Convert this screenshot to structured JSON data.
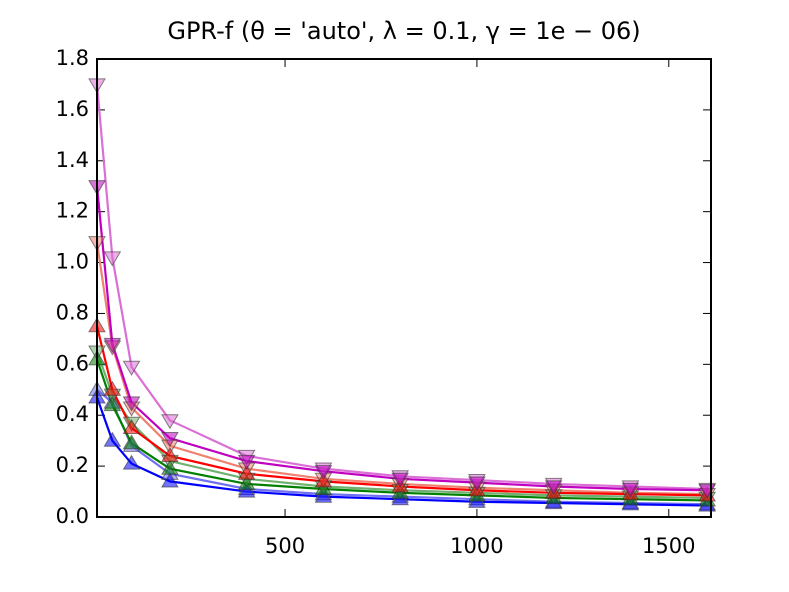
{
  "chart_data": {
    "type": "line",
    "title": "GPR-f (θ = 'auto', λ = 0.1, γ = 1e − 06)",
    "x": [
      10,
      50,
      100,
      200,
      400,
      600,
      800,
      1000,
      1200,
      1400,
      1600
    ],
    "xlim": [
      10,
      1610
    ],
    "xticks": [
      500,
      1000,
      1500
    ],
    "ylim": [
      0,
      1.8
    ],
    "yticks": [
      {
        "value": 0,
        "label": "0.0"
      },
      0.2,
      0.4,
      0.6,
      0.8,
      {
        "value": 1,
        "label": "1.0"
      },
      1.2,
      1.4,
      1.6,
      1.8
    ],
    "series": [
      {
        "color": "#7070f0",
        "marker": "^",
        "values": [
          0.5,
          0.45,
          0.28,
          0.17,
          0.11,
          0.09,
          0.08,
          0.07,
          0.06,
          0.055,
          0.05
        ]
      },
      {
        "color": "#0000ff",
        "marker": "^",
        "values": [
          0.47,
          0.3,
          0.21,
          0.14,
          0.1,
          0.08,
          0.07,
          0.06,
          0.055,
          0.05,
          0.045
        ]
      },
      {
        "color": "#70b070",
        "marker": "v",
        "values": [
          0.65,
          0.48,
          0.37,
          0.22,
          0.15,
          0.12,
          0.105,
          0.095,
          0.085,
          0.08,
          0.075
        ]
      },
      {
        "color": "#008000",
        "marker": "^",
        "values": [
          0.62,
          0.44,
          0.29,
          0.19,
          0.13,
          0.11,
          0.095,
          0.085,
          0.075,
          0.07,
          0.065
        ]
      },
      {
        "color": "#f08070",
        "marker": "v",
        "values": [
          1.08,
          0.67,
          0.43,
          0.28,
          0.19,
          0.15,
          0.13,
          0.115,
          0.105,
          0.095,
          0.09
        ]
      },
      {
        "color": "#ff0000",
        "marker": "^",
        "values": [
          0.75,
          0.5,
          0.35,
          0.24,
          0.17,
          0.14,
          0.12,
          0.105,
          0.095,
          0.09,
          0.085
        ]
      },
      {
        "color": "#da70d6",
        "marker": "v",
        "values": [
          1.7,
          1.02,
          0.59,
          0.38,
          0.24,
          0.19,
          0.16,
          0.145,
          0.13,
          0.12,
          0.11
        ]
      },
      {
        "color": "#c000c0",
        "marker": "v",
        "values": [
          1.3,
          0.68,
          0.45,
          0.31,
          0.22,
          0.18,
          0.15,
          0.135,
          0.12,
          0.11,
          0.105
        ]
      }
    ]
  }
}
